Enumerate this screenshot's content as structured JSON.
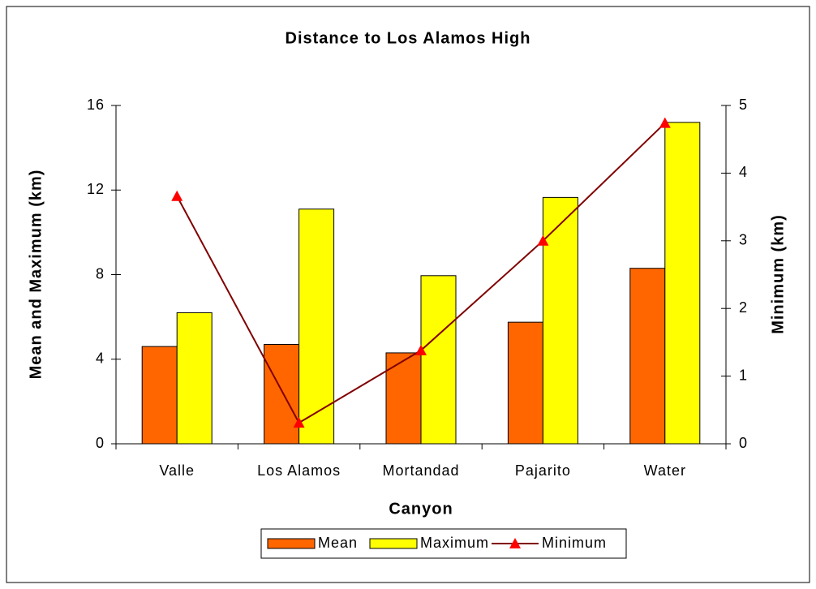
{
  "chart_data": {
    "type": "bar",
    "title": "Distance to Los Alamos High",
    "xlabel": "Canyon",
    "ylabel": "Mean and Maximum (km)",
    "y2label": "Minimum (km)",
    "categories": [
      "Valle",
      "Los Alamos",
      "Mortandad",
      "Pajarito",
      "Water"
    ],
    "series": [
      {
        "name": "Mean",
        "color": "#ff6600",
        "type": "bar",
        "values": [
          4.6,
          4.7,
          4.3,
          5.75,
          8.3
        ]
      },
      {
        "name": "Maximum",
        "color": "#ffff00",
        "type": "bar",
        "values": [
          6.2,
          11.1,
          7.95,
          11.65,
          15.2
        ]
      },
      {
        "name": "Minimum",
        "color": "#800000",
        "marker_color": "#ff0000",
        "type": "line",
        "axis": "y2",
        "values": [
          3.66,
          0.31,
          1.38,
          3.0,
          4.74
        ]
      }
    ],
    "ylim": [
      0,
      16
    ],
    "yticks": [
      0,
      4,
      8,
      12,
      16
    ],
    "y2lim": [
      0,
      5
    ],
    "y2ticks": [
      0,
      1,
      2,
      3,
      4,
      5
    ],
    "legend": "bottom"
  }
}
